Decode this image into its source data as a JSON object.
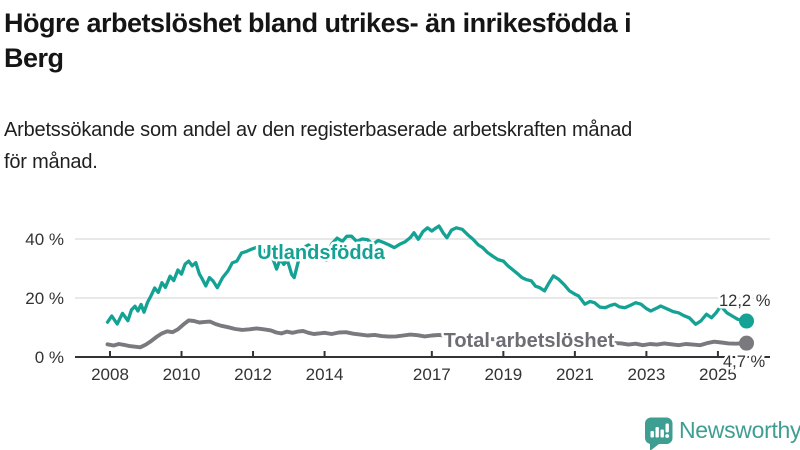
{
  "header": {
    "title_lines": [
      "Högre arbetslöshet bland utrikes- än inrikesfödda i",
      "Berg"
    ],
    "subtitle_lines": [
      "Arbetssökande som andel av den registerbaserade arbetskraften månad",
      "för månad."
    ]
  },
  "chart_data": {
    "type": "line",
    "title": "Högre arbetslöshet bland utrikes- än inrikesfödda i Berg",
    "subtitle": "Arbetssökande som andel av den registerbaserade arbetskraften månad för månad.",
    "xlabel": "",
    "ylabel": "",
    "xlim": [
      2007.9,
      2026.3
    ],
    "ylim": [
      0,
      47
    ],
    "grid": "horizontal-y at 20 and 40",
    "x_ticks": [
      2008,
      2010,
      2012,
      2014,
      2017,
      2019,
      2021,
      2023,
      2025
    ],
    "x_tick_labels": [
      "2008",
      "2010",
      "2012",
      "2014",
      "2017",
      "2019",
      "2021",
      "2023",
      "2025"
    ],
    "y_ticks": [
      0,
      20,
      40
    ],
    "y_tick_labels": [
      "0 %",
      "20 %",
      "40 %"
    ],
    "legend_position": "labels-on-lines",
    "series": [
      {
        "name": "Utlandsfödda",
        "color": "#14a294",
        "end_value": 12.2,
        "end_label": "12,2 %",
        "points": [
          [
            2007.93,
            11.8
          ],
          [
            2008.05,
            13.9
          ],
          [
            2008.2,
            11.2
          ],
          [
            2008.35,
            14.8
          ],
          [
            2008.5,
            12.3
          ],
          [
            2008.6,
            16.0
          ],
          [
            2008.7,
            17.2
          ],
          [
            2008.78,
            15.6
          ],
          [
            2008.87,
            17.8
          ],
          [
            2008.95,
            15.2
          ],
          [
            2009.05,
            18.5
          ],
          [
            2009.15,
            20.8
          ],
          [
            2009.25,
            23.4
          ],
          [
            2009.35,
            21.9
          ],
          [
            2009.45,
            25.2
          ],
          [
            2009.55,
            23.6
          ],
          [
            2009.68,
            27.4
          ],
          [
            2009.78,
            25.9
          ],
          [
            2009.9,
            29.5
          ],
          [
            2010.0,
            28.1
          ],
          [
            2010.1,
            31.5
          ],
          [
            2010.2,
            32.5
          ],
          [
            2010.3,
            30.9
          ],
          [
            2010.4,
            32.0
          ],
          [
            2010.5,
            28.1
          ],
          [
            2010.58,
            26.4
          ],
          [
            2010.68,
            24.1
          ],
          [
            2010.78,
            26.9
          ],
          [
            2010.88,
            25.8
          ],
          [
            2011.0,
            23.5
          ],
          [
            2011.15,
            26.9
          ],
          [
            2011.3,
            29.2
          ],
          [
            2011.42,
            31.9
          ],
          [
            2011.55,
            32.5
          ],
          [
            2011.68,
            35.3
          ],
          [
            2011.82,
            35.8
          ],
          [
            2011.95,
            36.5
          ],
          [
            2012.1,
            37.2
          ],
          [
            2012.25,
            36.6
          ],
          [
            2012.4,
            35.2
          ],
          [
            2012.55,
            33.5
          ],
          [
            2012.66,
            29.8
          ],
          [
            2012.76,
            33.2
          ],
          [
            2012.86,
            31.4
          ],
          [
            2012.96,
            32.8
          ],
          [
            2013.08,
            28.0
          ],
          [
            2013.15,
            26.9
          ],
          [
            2013.3,
            34.0
          ],
          [
            2013.4,
            37.0
          ],
          [
            2013.55,
            38.0
          ],
          [
            2013.7,
            36.2
          ],
          [
            2013.85,
            33.5
          ],
          [
            2013.95,
            35.5
          ],
          [
            2014.05,
            32.8
          ],
          [
            2014.2,
            38.3
          ],
          [
            2014.35,
            40.3
          ],
          [
            2014.5,
            39.2
          ],
          [
            2014.62,
            40.9
          ],
          [
            2014.75,
            41.0
          ],
          [
            2014.9,
            39.2
          ],
          [
            2015.05,
            40.0
          ],
          [
            2015.2,
            39.8
          ],
          [
            2015.35,
            38.2
          ],
          [
            2015.5,
            39.5
          ],
          [
            2015.65,
            38.8
          ],
          [
            2015.8,
            38.0
          ],
          [
            2015.95,
            37.1
          ],
          [
            2016.1,
            38.2
          ],
          [
            2016.25,
            39.0
          ],
          [
            2016.4,
            40.5
          ],
          [
            2016.5,
            42.1
          ],
          [
            2016.62,
            39.9
          ],
          [
            2016.75,
            42.5
          ],
          [
            2016.88,
            43.8
          ],
          [
            2017.0,
            42.7
          ],
          [
            2017.1,
            43.6
          ],
          [
            2017.2,
            44.4
          ],
          [
            2017.32,
            42.0
          ],
          [
            2017.42,
            40.4
          ],
          [
            2017.55,
            43.0
          ],
          [
            2017.68,
            43.8
          ],
          [
            2017.85,
            43.3
          ],
          [
            2018.0,
            41.5
          ],
          [
            2018.15,
            39.9
          ],
          [
            2018.3,
            38.0
          ],
          [
            2018.42,
            37.1
          ],
          [
            2018.55,
            35.5
          ],
          [
            2018.7,
            34.2
          ],
          [
            2018.85,
            33.0
          ],
          [
            2019.0,
            32.5
          ],
          [
            2019.12,
            31.0
          ],
          [
            2019.25,
            29.7
          ],
          [
            2019.4,
            28.2
          ],
          [
            2019.52,
            26.9
          ],
          [
            2019.65,
            26.2
          ],
          [
            2019.78,
            25.8
          ],
          [
            2019.9,
            24.0
          ],
          [
            2020.02,
            23.5
          ],
          [
            2020.15,
            22.4
          ],
          [
            2020.28,
            25.2
          ],
          [
            2020.4,
            27.5
          ],
          [
            2020.55,
            26.3
          ],
          [
            2020.7,
            24.5
          ],
          [
            2020.85,
            22.4
          ],
          [
            2021.0,
            21.3
          ],
          [
            2021.1,
            20.7
          ],
          [
            2021.28,
            17.9
          ],
          [
            2021.42,
            18.8
          ],
          [
            2021.55,
            18.4
          ],
          [
            2021.7,
            16.9
          ],
          [
            2021.85,
            16.7
          ],
          [
            2022.0,
            17.5
          ],
          [
            2022.12,
            17.9
          ],
          [
            2022.25,
            17.0
          ],
          [
            2022.4,
            16.7
          ],
          [
            2022.55,
            17.5
          ],
          [
            2022.7,
            18.4
          ],
          [
            2022.85,
            17.9
          ],
          [
            2023.0,
            16.4
          ],
          [
            2023.12,
            15.6
          ],
          [
            2023.28,
            16.5
          ],
          [
            2023.4,
            17.3
          ],
          [
            2023.6,
            16.2
          ],
          [
            2023.75,
            15.4
          ],
          [
            2023.9,
            15.0
          ],
          [
            2024.05,
            14.0
          ],
          [
            2024.2,
            13.3
          ],
          [
            2024.38,
            11.1
          ],
          [
            2024.52,
            12.2
          ],
          [
            2024.68,
            14.5
          ],
          [
            2024.82,
            13.3
          ],
          [
            2024.95,
            15.0
          ],
          [
            2025.08,
            17.3
          ],
          [
            2025.25,
            15.0
          ],
          [
            2025.4,
            13.9
          ],
          [
            2025.55,
            12.8
          ],
          [
            2025.8,
            12.2
          ]
        ]
      },
      {
        "name": "Total arbetslöshet",
        "color": "#7a7a7e",
        "end_value": 4.7,
        "end_label": "4,7 %",
        "points": [
          [
            2007.93,
            4.3
          ],
          [
            2008.1,
            3.9
          ],
          [
            2008.25,
            4.4
          ],
          [
            2008.4,
            4.1
          ],
          [
            2008.55,
            3.7
          ],
          [
            2008.7,
            3.5
          ],
          [
            2008.85,
            3.3
          ],
          [
            2009.0,
            4.2
          ],
          [
            2009.15,
            5.4
          ],
          [
            2009.3,
            6.8
          ],
          [
            2009.45,
            8.0
          ],
          [
            2009.6,
            8.7
          ],
          [
            2009.75,
            8.4
          ],
          [
            2009.9,
            9.4
          ],
          [
            2010.05,
            11.0
          ],
          [
            2010.2,
            12.4
          ],
          [
            2010.35,
            12.2
          ],
          [
            2010.5,
            11.7
          ],
          [
            2010.65,
            11.9
          ],
          [
            2010.8,
            12.0
          ],
          [
            2010.95,
            11.2
          ],
          [
            2011.1,
            10.6
          ],
          [
            2011.3,
            10.1
          ],
          [
            2011.5,
            9.5
          ],
          [
            2011.7,
            9.2
          ],
          [
            2011.9,
            9.4
          ],
          [
            2012.1,
            9.7
          ],
          [
            2012.3,
            9.4
          ],
          [
            2012.5,
            9.0
          ],
          [
            2012.65,
            8.3
          ],
          [
            2012.8,
            8.0
          ],
          [
            2012.95,
            8.6
          ],
          [
            2013.1,
            8.2
          ],
          [
            2013.25,
            8.6
          ],
          [
            2013.4,
            8.8
          ],
          [
            2013.55,
            8.2
          ],
          [
            2013.7,
            7.8
          ],
          [
            2013.85,
            8.0
          ],
          [
            2014.0,
            8.2
          ],
          [
            2014.2,
            7.8
          ],
          [
            2014.4,
            8.3
          ],
          [
            2014.6,
            8.4
          ],
          [
            2014.8,
            7.9
          ],
          [
            2015.0,
            7.6
          ],
          [
            2015.2,
            7.3
          ],
          [
            2015.4,
            7.5
          ],
          [
            2015.6,
            7.1
          ],
          [
            2015.8,
            6.9
          ],
          [
            2016.0,
            7.0
          ],
          [
            2016.2,
            7.3
          ],
          [
            2016.4,
            7.6
          ],
          [
            2016.6,
            7.4
          ],
          [
            2016.8,
            7.0
          ],
          [
            2017.0,
            7.3
          ],
          [
            2017.2,
            7.5
          ],
          [
            2017.4,
            7.2
          ],
          [
            2017.6,
            6.9
          ],
          [
            2017.8,
            6.7
          ],
          [
            2018.0,
            6.8
          ],
          [
            2018.25,
            6.5
          ],
          [
            2018.5,
            6.2
          ],
          [
            2018.75,
            6.0
          ],
          [
            2019.0,
            6.1
          ],
          [
            2019.25,
            5.8
          ],
          [
            2019.5,
            5.6
          ],
          [
            2019.75,
            5.5
          ],
          [
            2020.0,
            5.8
          ],
          [
            2020.3,
            7.2
          ],
          [
            2020.5,
            7.0
          ],
          [
            2020.75,
            6.4
          ],
          [
            2021.0,
            6.0
          ],
          [
            2021.25,
            5.6
          ],
          [
            2021.5,
            5.2
          ],
          [
            2021.75,
            5.0
          ],
          [
            2022.0,
            4.8
          ],
          [
            2022.3,
            4.6
          ],
          [
            2022.5,
            4.2
          ],
          [
            2022.7,
            4.5
          ],
          [
            2022.9,
            4.0
          ],
          [
            2023.1,
            4.4
          ],
          [
            2023.3,
            4.2
          ],
          [
            2023.5,
            4.6
          ],
          [
            2023.7,
            4.3
          ],
          [
            2023.9,
            4.0
          ],
          [
            2024.1,
            4.4
          ],
          [
            2024.3,
            4.2
          ],
          [
            2024.5,
            4.0
          ],
          [
            2024.7,
            4.7
          ],
          [
            2024.9,
            5.2
          ],
          [
            2025.1,
            4.9
          ],
          [
            2025.3,
            4.6
          ],
          [
            2025.5,
            4.5
          ],
          [
            2025.8,
            4.7
          ]
        ]
      }
    ]
  },
  "footer": {
    "brand": "Newsworthy"
  },
  "colors": {
    "accent_teal": "#14a294",
    "total_line_gray": "#7a7a7e",
    "total_label_gray": "#6d6d73",
    "grid": "#d9d9d9",
    "axis": "#333333",
    "tick_text": "#333333",
    "annotation_text": "#333333",
    "title_text": "#151515",
    "brand_teal": "#3f9e92"
  }
}
